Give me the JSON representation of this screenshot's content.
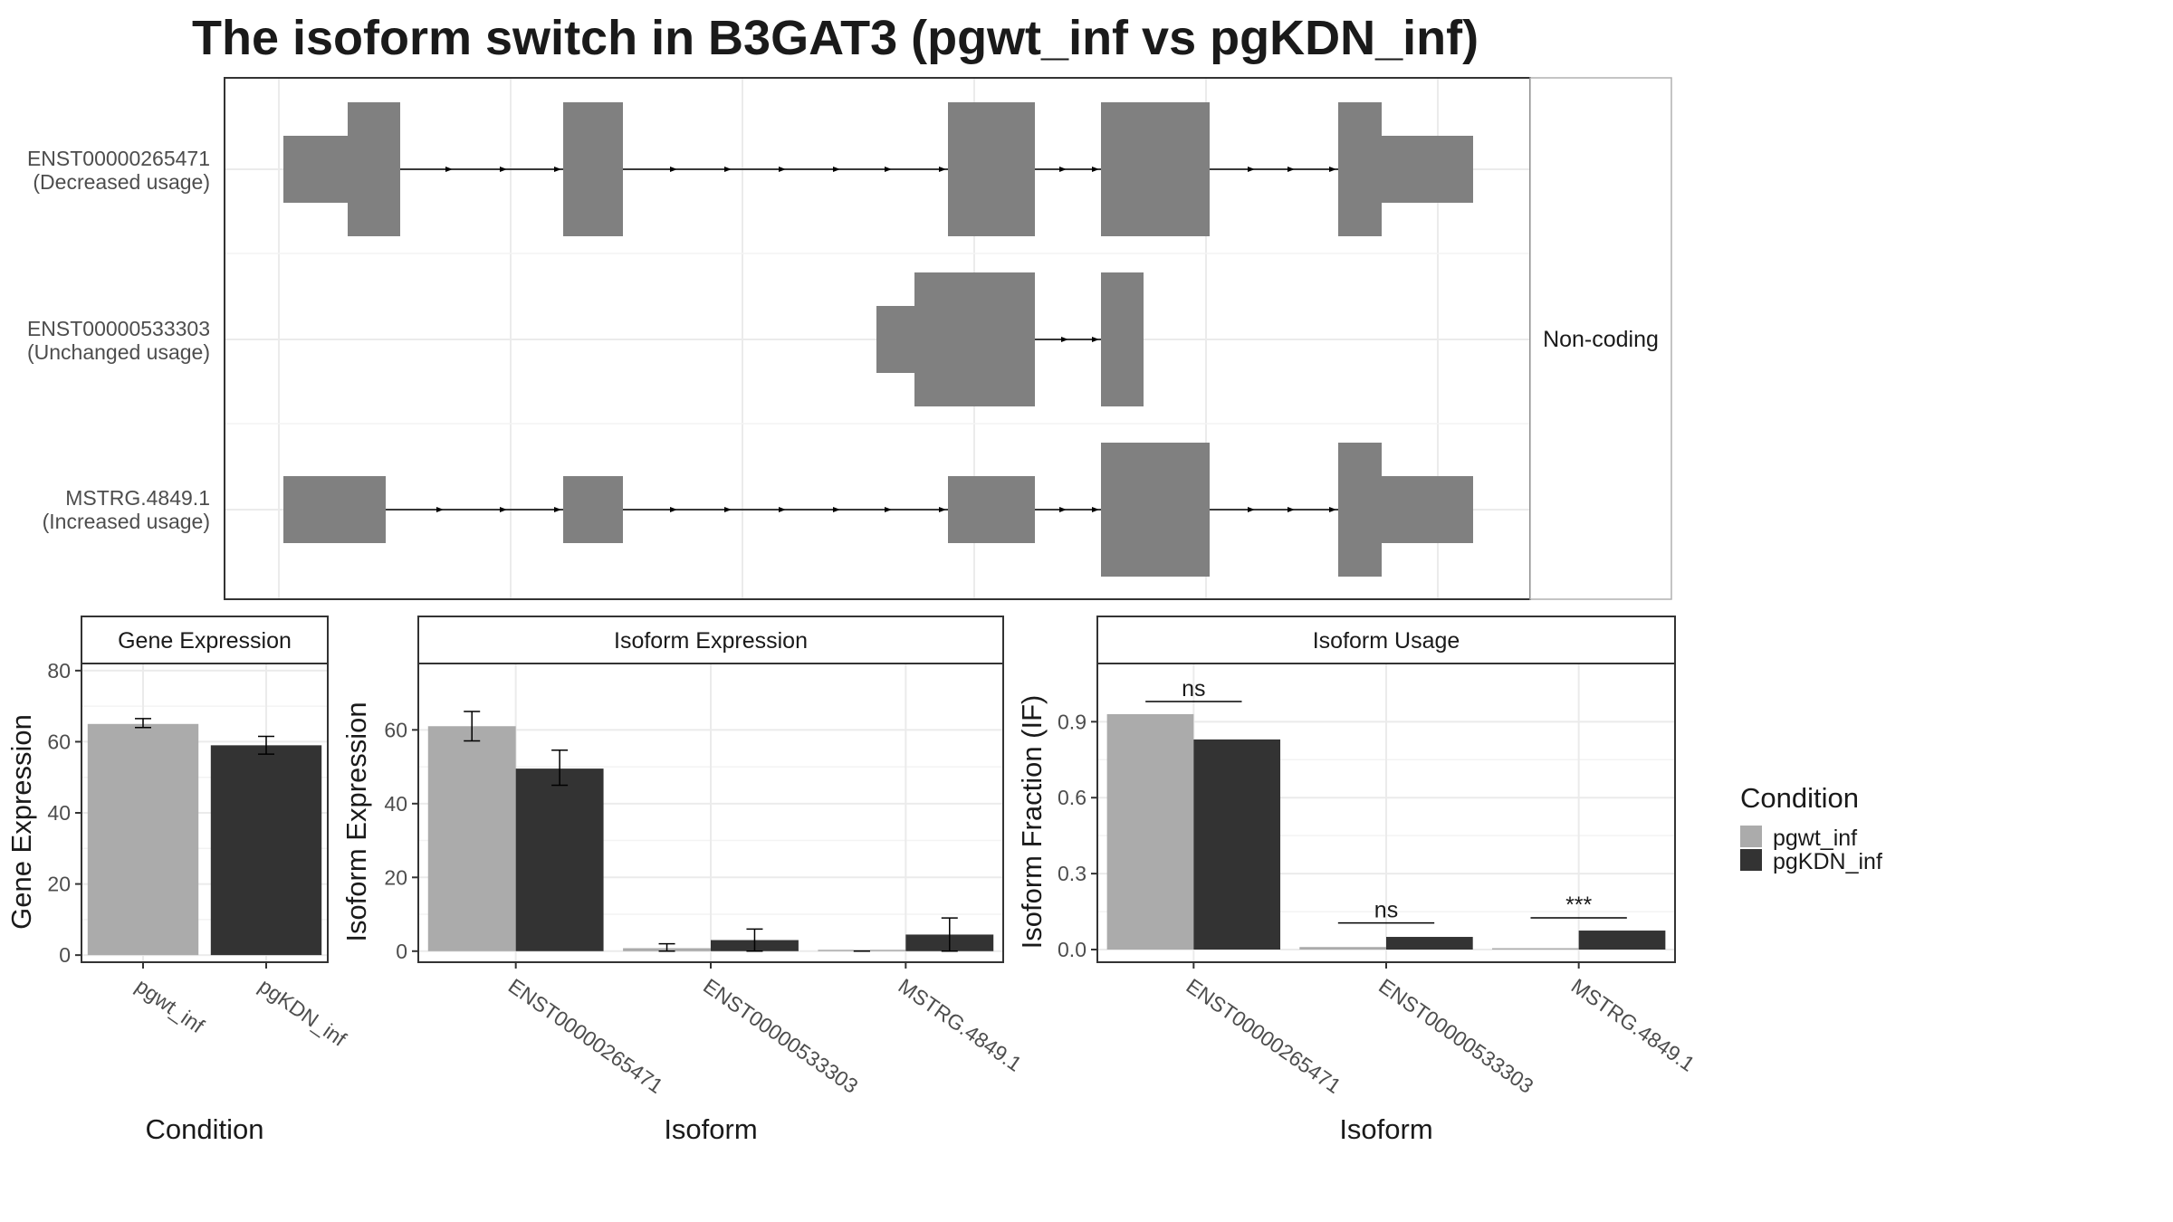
{
  "title": "The isoform switch in B3GAT3 (pgwt_inf vs pgKDN_inf)",
  "colors": {
    "pgwt_inf": "#ababab",
    "pgKDN_inf": "#333333",
    "exon": "#808080"
  },
  "structure": {
    "isoforms": [
      {
        "id": "ENST00000265471",
        "usage": "(Decreased usage)"
      },
      {
        "id": "ENST00000533303",
        "usage": "(Unchanged usage)"
      },
      {
        "id": "MSTRG.4849.1",
        "usage": "(Increased usage)"
      }
    ],
    "side_label": "Non-coding"
  },
  "chart_data": [
    {
      "type": "bar",
      "strip": "Gene Expression",
      "xlabel": "Condition",
      "ylabel": "Gene Expression",
      "categories": [
        "pgwt_inf",
        "pgKDN_inf"
      ],
      "values": [
        65,
        59
      ],
      "error": [
        [
          64,
          66.5
        ],
        [
          56.5,
          61.5
        ]
      ],
      "ylim": [
        -2,
        82
      ],
      "yticks": [
        0,
        20,
        40,
        60,
        80
      ],
      "tick_labels": [
        "0",
        "20",
        "40",
        "60",
        "80"
      ]
    },
    {
      "type": "bar",
      "strip": "Isoform Expression",
      "xlabel": "Isoform",
      "ylabel": "Isoform Expression",
      "categories": [
        "ENST00000265471",
        "ENST00000533303",
        "MSTRG.4849.1"
      ],
      "series": [
        {
          "name": "pgwt_inf",
          "values": [
            61,
            0.8,
            0
          ],
          "error": [
            [
              57,
              65
            ],
            [
              0,
              2
            ],
            [
              0,
              0
            ]
          ]
        },
        {
          "name": "pgKDN_inf",
          "values": [
            49.5,
            3,
            4.5
          ],
          "error": [
            [
              45,
              54.5
            ],
            [
              0,
              6
            ],
            [
              0,
              9
            ]
          ]
        }
      ],
      "ylim": [
        -3,
        78
      ],
      "yticks": [
        0,
        20,
        40,
        60
      ],
      "tick_labels": [
        "0",
        "20",
        "40",
        "60"
      ]
    },
    {
      "type": "bar",
      "strip": "Isoform Usage",
      "xlabel": "Isoform",
      "ylabel": "Isoform Fraction (IF)",
      "categories": [
        "ENST00000265471",
        "ENST00000533303",
        "MSTRG.4849.1"
      ],
      "series": [
        {
          "name": "pgwt_inf",
          "values": [
            0.93,
            0.01,
            0
          ]
        },
        {
          "name": "pgKDN_inf",
          "values": [
            0.83,
            0.05,
            0.075
          ]
        }
      ],
      "significance": [
        {
          "label": "ns",
          "y": 0.98
        },
        {
          "label": "ns",
          "y": 0.105
        },
        {
          "label": "***",
          "y": 0.125
        }
      ],
      "ylim": [
        -0.05,
        1.13
      ],
      "yticks": [
        0,
        0.3,
        0.6,
        0.9
      ],
      "tick_labels": [
        "0.0",
        "0.3",
        "0.6",
        "0.9"
      ]
    }
  ],
  "legend": {
    "title": "Condition",
    "items": [
      "pgwt_inf",
      "pgKDN_inf"
    ]
  }
}
